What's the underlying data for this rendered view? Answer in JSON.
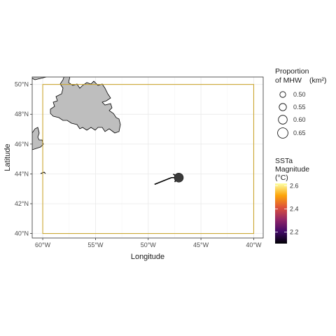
{
  "map": {
    "x_axis": {
      "title": "Longitude",
      "ticks": [
        {
          "value": -60,
          "label": "60°W"
        },
        {
          "value": -55,
          "label": "55°W"
        },
        {
          "value": -50,
          "label": "50°W"
        },
        {
          "value": -45,
          "label": "45°W"
        },
        {
          "value": -40,
          "label": "40°W"
        }
      ]
    },
    "y_axis": {
      "title": "Latitude",
      "ticks": [
        {
          "value": 40,
          "label": "40°N"
        },
        {
          "value": 42,
          "label": "42°N"
        },
        {
          "value": 44,
          "label": "44°N"
        },
        {
          "value": 46,
          "label": "46°N"
        },
        {
          "value": 48,
          "label": "48°N"
        },
        {
          "value": 50,
          "label": "50°N"
        }
      ]
    },
    "extent": {
      "lon": [
        -61,
        -39.1
      ],
      "lat": [
        39.7,
        50.5
      ]
    },
    "study_box": {
      "lon": [
        -60,
        -40
      ],
      "lat": [
        40,
        50
      ],
      "color": "#c8a020"
    },
    "land_color": "#bebebe",
    "grid_color": "#ebebeb",
    "event": {
      "centroid": {
        "lon": -47.1,
        "lat": 43.75
      },
      "track": [
        [
          -49.4,
          43.3
        ],
        [
          -47.8,
          43.75
        ],
        [
          -47.1,
          43.75
        ]
      ],
      "marker_color": "#3a3a3a"
    },
    "legend_size": {
      "title_line1": "Proportion",
      "title_line2": "of MHW",
      "title_unit": "(km²)",
      "items": [
        {
          "label": "0.50",
          "value": 0.5
        },
        {
          "label": "0.55",
          "value": 0.55
        },
        {
          "label": "0.60",
          "value": 0.6
        },
        {
          "label": "0.65",
          "value": 0.65
        }
      ]
    },
    "legend_color": {
      "title_line1": "SSTa",
      "title_line2": "Magnitude",
      "title_line3": "(°C)",
      "range": [
        2.1,
        2.62
      ],
      "ticks": [
        {
          "label": "2.2",
          "value": 2.2
        },
        {
          "label": "2.4",
          "value": 2.4
        },
        {
          "label": "2.6",
          "value": 2.6
        }
      ],
      "colors": [
        "#000004",
        "#420a68",
        "#932667",
        "#dd513a",
        "#fca50a",
        "#fcffa4"
      ]
    }
  }
}
